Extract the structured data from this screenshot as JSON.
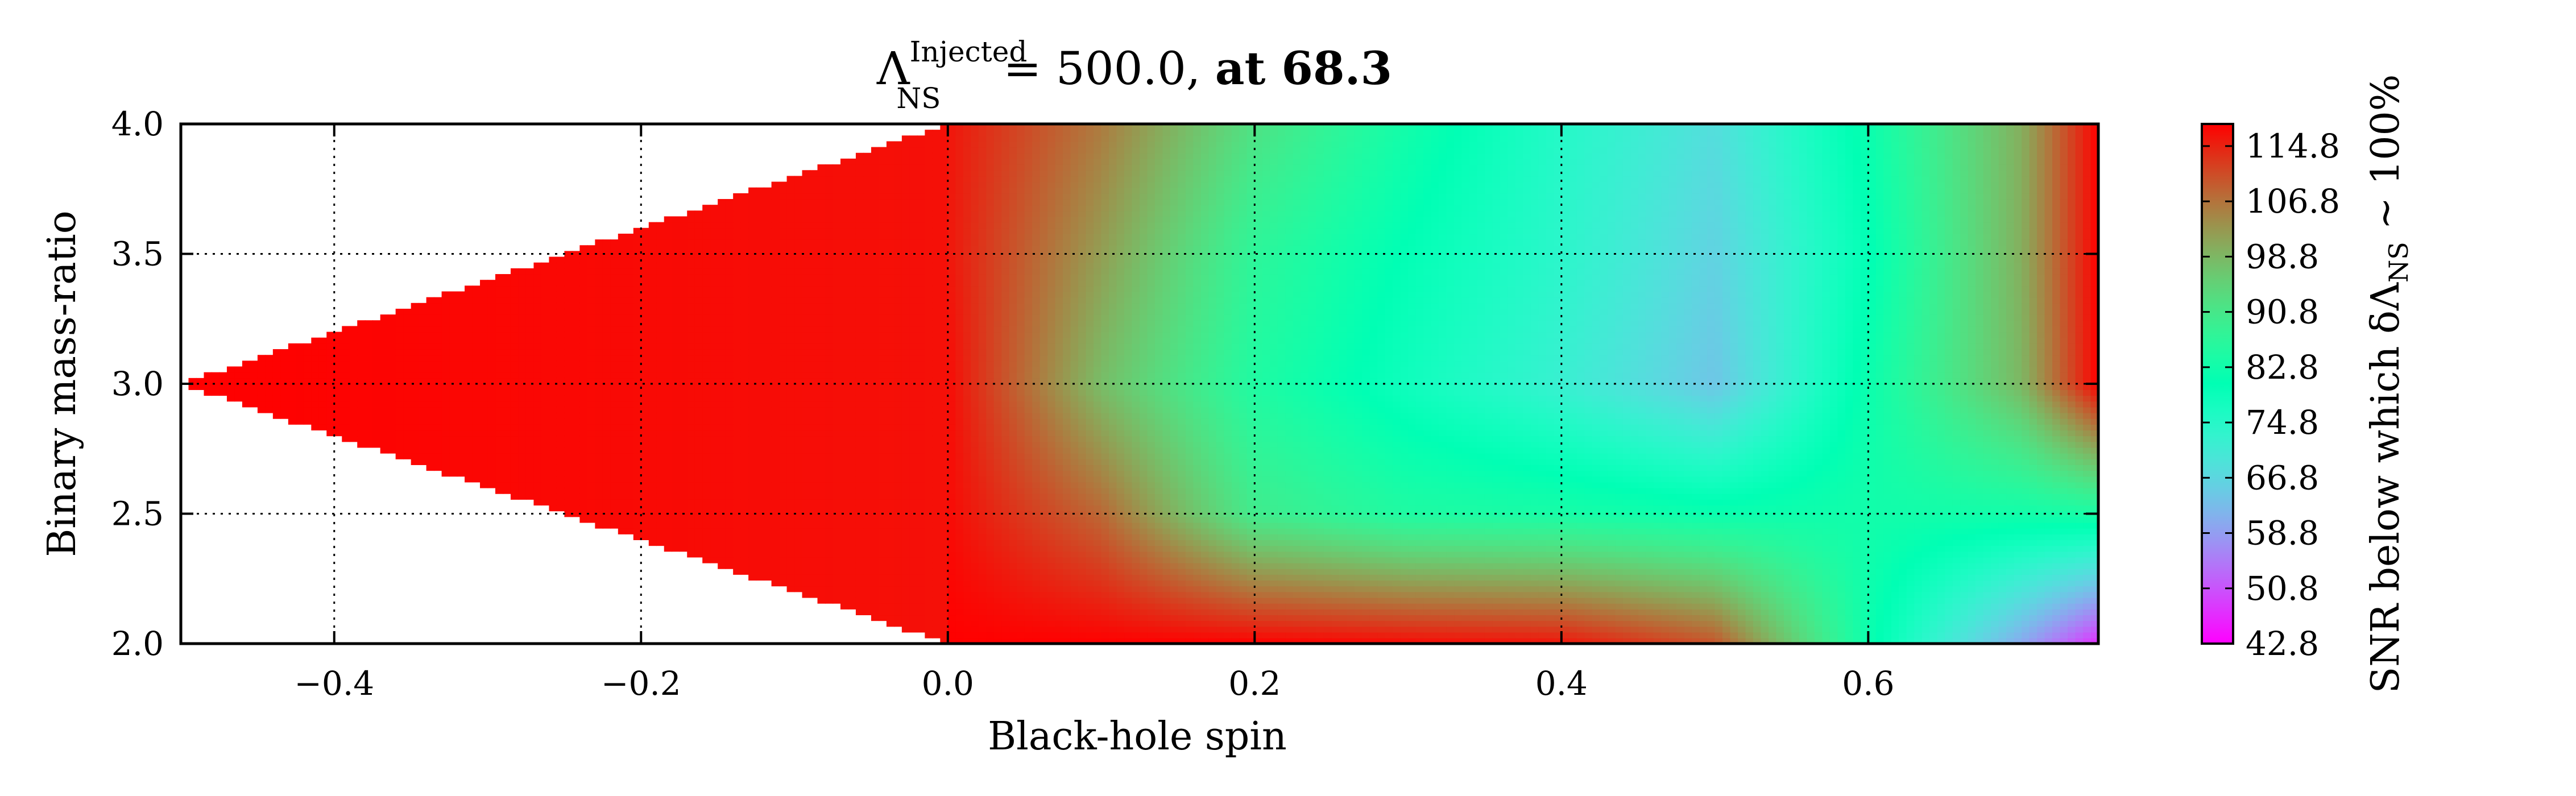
{
  "chart_data": {
    "type": "heatmap",
    "plot_style": "filled-contour",
    "title": {
      "symbol": "Λ",
      "superscript": "Injected",
      "subscript": "NS",
      "value_text": "= 500.0, ",
      "bold_text": "at 68.3"
    },
    "xlabel": "Black-hole spin",
    "ylabel": "Binary mass-ratio",
    "colorbar_label": "SNR below which δΛ",
    "colorbar_label_sub": "NS",
    "colorbar_label_tail": " ~ 100%",
    "xlim": [
      -0.5,
      0.75
    ],
    "ylim": [
      2.0,
      4.0
    ],
    "xticks": [
      -0.4,
      -0.2,
      0.0,
      0.2,
      0.4,
      0.6
    ],
    "xtick_labels": [
      "−0.4",
      "−0.2",
      "0.0",
      "0.2",
      "0.4",
      "0.6"
    ],
    "yticks": [
      2.0,
      2.5,
      3.0,
      3.5,
      4.0
    ],
    "ytick_labels": [
      "2.0",
      "2.5",
      "3.0",
      "3.5",
      "4.0"
    ],
    "colorbar_range": [
      42.8,
      118
    ],
    "colorbar_ticks": [
      42.8,
      50.8,
      58.8,
      66.8,
      74.8,
      82.8,
      90.8,
      98.8,
      106.8,
      114.8
    ],
    "colorbar_tick_labels": [
      "42.8",
      "50.8",
      "58.8",
      "66.8",
      "74.8",
      "82.8",
      "90.8",
      "98.8",
      "106.8",
      "114.8"
    ],
    "colormap": "rainbow",
    "grid": true,
    "grid_style": "dotted",
    "spin_values": [
      -0.5,
      0.0,
      0.1,
      0.2,
      0.3,
      0.4,
      0.5,
      0.6,
      0.7,
      0.75
    ],
    "mass_ratio_values": [
      2.0,
      2.5,
      3.0,
      3.5,
      4.0
    ],
    "snr_values": [
      [
        null,
        118,
        118,
        118,
        117,
        116,
        110,
        82,
        60,
        47
      ],
      [
        null,
        117,
        108,
        90,
        85,
        84,
        82,
        83,
        83,
        84
      ],
      [
        118,
        117,
        98,
        85,
        78,
        72,
        64,
        82,
        99,
        118
      ],
      [
        null,
        116,
        102,
        87,
        80,
        74,
        66,
        80,
        100,
        118
      ],
      [
        null,
        116,
        106,
        92,
        83,
        75,
        68,
        82,
        100,
        118
      ]
    ]
  }
}
